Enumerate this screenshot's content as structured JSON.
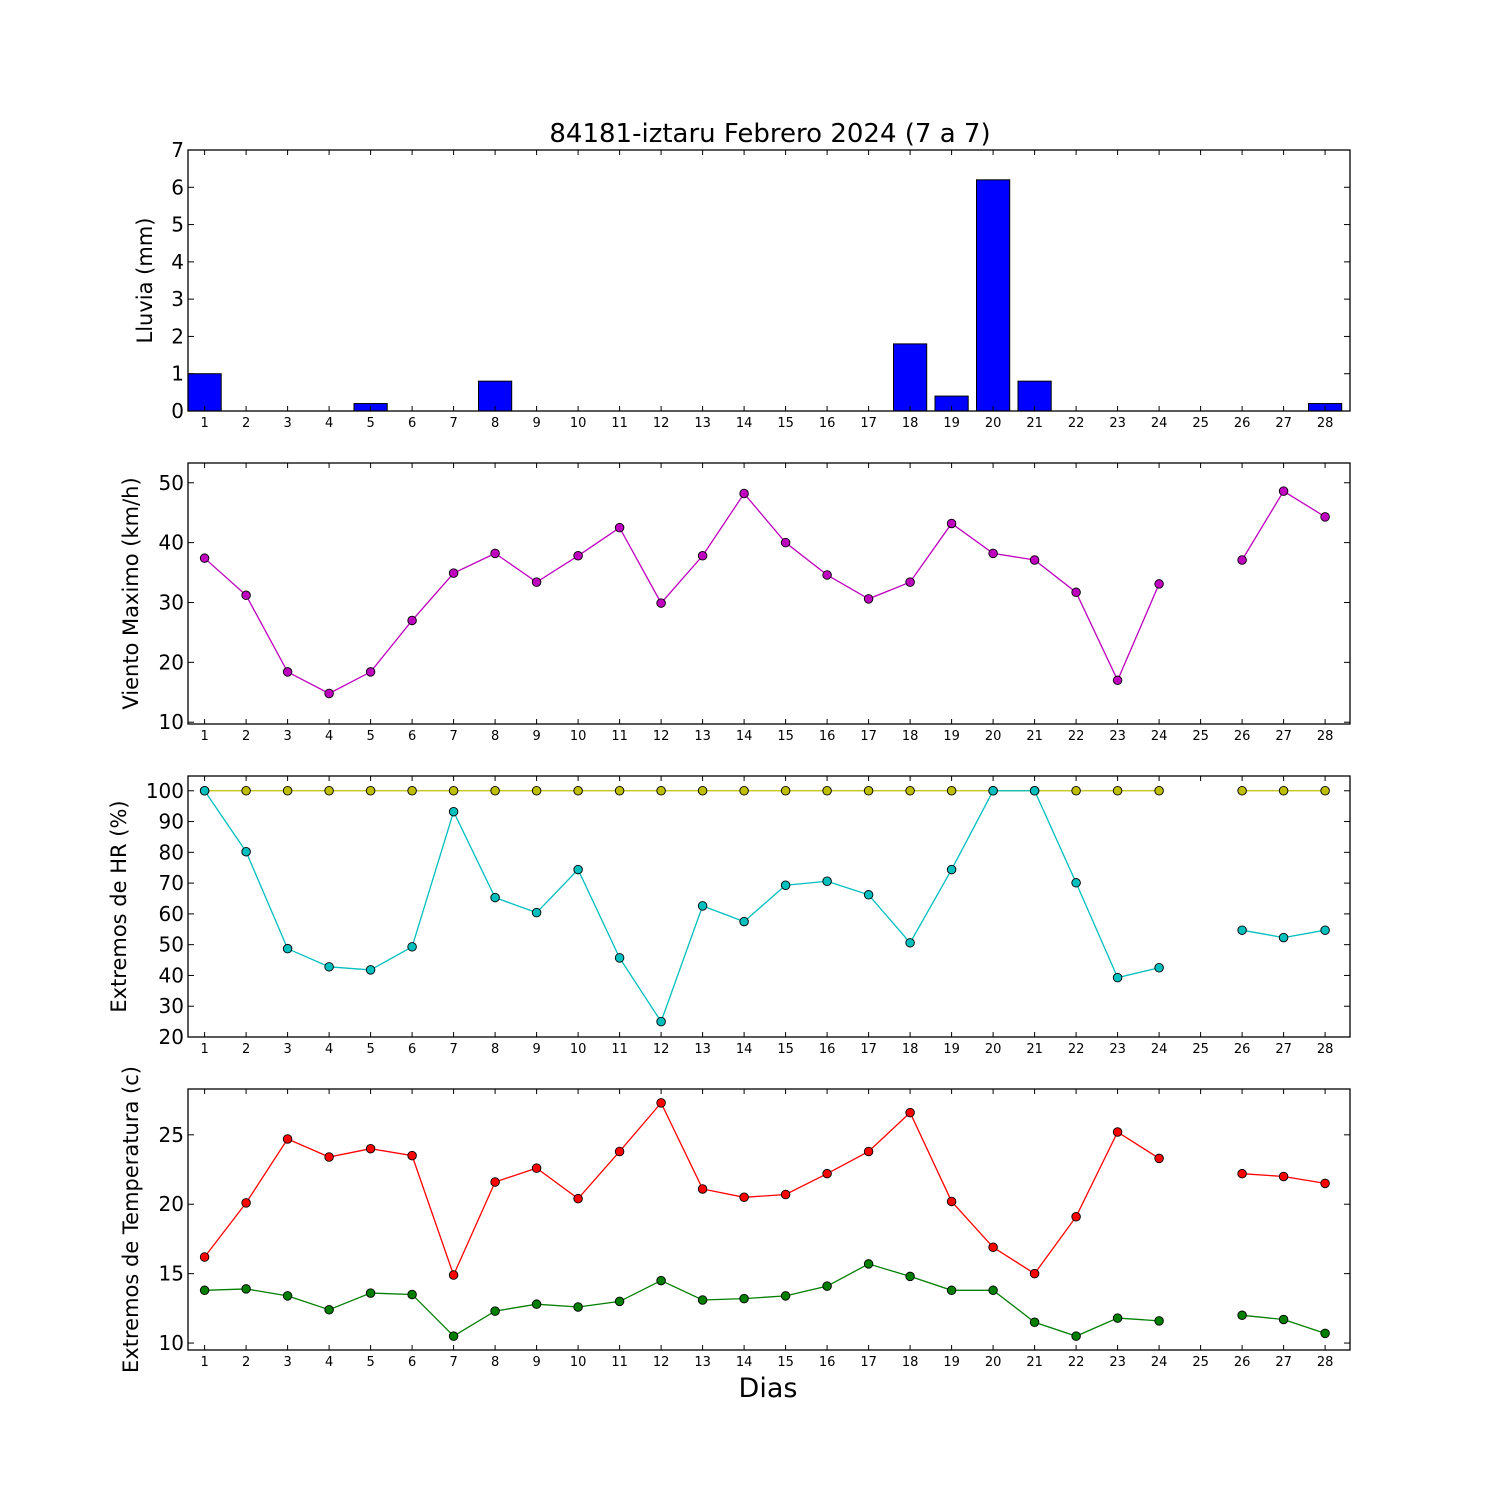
{
  "figure": {
    "title": "84181-iztaru Febrero 2024  (7 a 7)",
    "xlabel": "Dias"
  },
  "chart_data": [
    {
      "type": "bar",
      "ylabel": "Lluvia (mm)",
      "categories": [
        1,
        2,
        3,
        4,
        5,
        6,
        7,
        8,
        9,
        10,
        11,
        12,
        13,
        14,
        15,
        16,
        17,
        18,
        19,
        20,
        21,
        22,
        23,
        24,
        25,
        26,
        27,
        28
      ],
      "ylim": [
        0,
        7
      ],
      "yticks": [
        0,
        1,
        2,
        3,
        4,
        5,
        6,
        7
      ],
      "series": [
        {
          "color": "#0000ff",
          "values": [
            1.0,
            0,
            0,
            0,
            0.2,
            0,
            0,
            0.8,
            0,
            0,
            0,
            0,
            0,
            0,
            0,
            0,
            0,
            1.8,
            0.4,
            6.2,
            0.8,
            0,
            0,
            0,
            0,
            0,
            0,
            0.2
          ]
        }
      ]
    },
    {
      "type": "line",
      "ylabel": "Viento Maximo (km/h)",
      "categories": [
        1,
        2,
        3,
        4,
        5,
        6,
        7,
        8,
        9,
        10,
        11,
        12,
        13,
        14,
        15,
        16,
        17,
        18,
        19,
        20,
        21,
        22,
        23,
        24,
        25,
        26,
        27,
        28
      ],
      "ylim": [
        9.7,
        53.3
      ],
      "yticks": [
        10,
        20,
        30,
        40,
        50
      ],
      "series": [
        {
          "color": "#bf00bf",
          "values": [
            37.4,
            31.2,
            18.4,
            14.8,
            18.4,
            27.0,
            34.9,
            38.2,
            33.4,
            37.8,
            42.5,
            29.9,
            37.8,
            48.2,
            40.0,
            34.6,
            30.6,
            33.4,
            43.2,
            38.2,
            37.1,
            31.7,
            17.0,
            33.1,
            null,
            37.1,
            48.6,
            44.3
          ]
        }
      ]
    },
    {
      "type": "line",
      "ylabel": "Extremos de HR (%)",
      "categories": [
        1,
        2,
        3,
        4,
        5,
        6,
        7,
        8,
        9,
        10,
        11,
        12,
        13,
        14,
        15,
        16,
        17,
        18,
        19,
        20,
        21,
        22,
        23,
        24,
        25,
        26,
        27,
        28
      ],
      "ylim": [
        20,
        104.8
      ],
      "yticks": [
        20,
        30,
        40,
        50,
        60,
        70,
        80,
        90,
        100
      ],
      "series": [
        {
          "color": "#bfbf00",
          "values": [
            100,
            100,
            100,
            100,
            100,
            100,
            100,
            100,
            100,
            100,
            100,
            100,
            100,
            100,
            100,
            100,
            100,
            100,
            100,
            100,
            100,
            100,
            100,
            100,
            null,
            100,
            100,
            100
          ]
        },
        {
          "color": "#00bfbf",
          "values": [
            100,
            80.2,
            48.7,
            42.8,
            41.8,
            49.3,
            93.2,
            65.3,
            60.4,
            74.4,
            45.7,
            25.0,
            62.6,
            57.5,
            69.3,
            70.6,
            66.2,
            50.6,
            74.4,
            100,
            100,
            70.1,
            39.3,
            42.5,
            null,
            54.7,
            52.3,
            54.7
          ]
        }
      ]
    },
    {
      "type": "line",
      "ylabel": "Extremos de Temperatura (c)",
      "categories": [
        1,
        2,
        3,
        4,
        5,
        6,
        7,
        8,
        9,
        10,
        11,
        12,
        13,
        14,
        15,
        16,
        17,
        18,
        19,
        20,
        21,
        22,
        23,
        24,
        25,
        26,
        27,
        28
      ],
      "ylim": [
        9.5,
        28.3
      ],
      "yticks": [
        10,
        15,
        20,
        25
      ],
      "series": [
        {
          "color": "#ff0000",
          "values": [
            16.2,
            20.1,
            24.7,
            23.4,
            24.0,
            23.5,
            14.9,
            21.6,
            22.6,
            20.4,
            23.8,
            27.3,
            21.1,
            20.5,
            20.7,
            22.2,
            23.8,
            26.6,
            20.2,
            16.9,
            15.0,
            19.1,
            25.2,
            23.3,
            null,
            22.2,
            22.0,
            21.5
          ]
        },
        {
          "color": "#007f00",
          "values": [
            13.8,
            13.9,
            13.4,
            12.4,
            13.6,
            13.5,
            10.5,
            12.3,
            12.8,
            12.6,
            13.0,
            14.5,
            13.1,
            13.2,
            13.4,
            14.1,
            15.7,
            14.8,
            13.8,
            13.8,
            11.5,
            10.5,
            11.8,
            11.6,
            null,
            12.0,
            11.7,
            10.7
          ]
        }
      ]
    }
  ]
}
